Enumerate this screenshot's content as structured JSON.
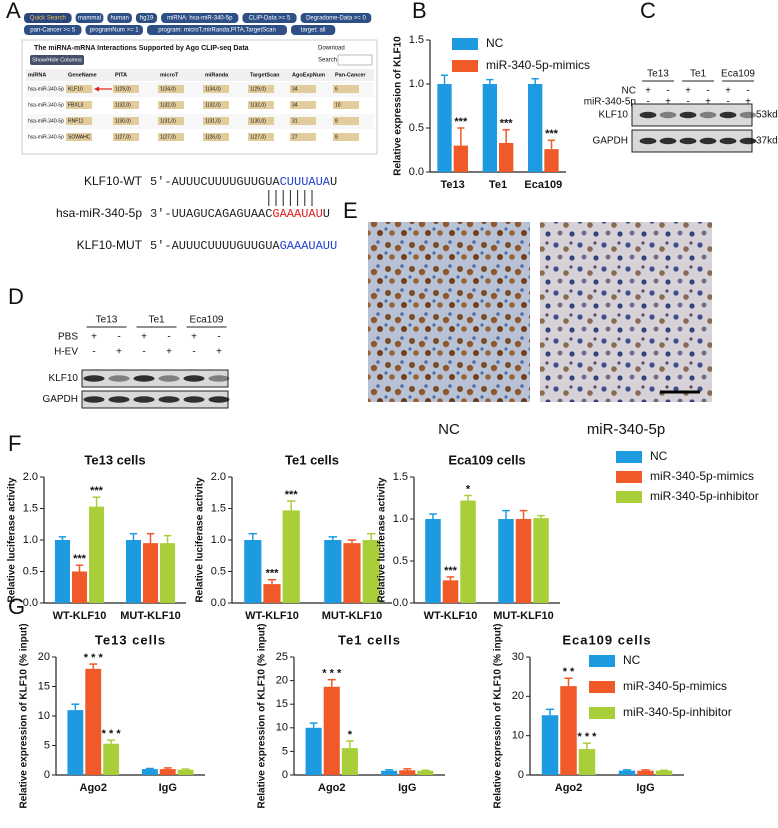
{
  "panel_letters": [
    "A",
    "B",
    "C",
    "D",
    "E",
    "F",
    "G"
  ],
  "panel_a": {
    "buttons": [
      "Quick Search",
      "mammal",
      "human",
      "hg19",
      "miRNA: hsa-miR-340-5p",
      "CLIP-Data >= 5",
      "Degradome-Data >= 0",
      "pan-Cancer >= 5",
      "programNum >= 1",
      "program: microT,mirRanda,PITA,TargetScan",
      "target: all"
    ],
    "table": {
      "title": "The miRNA-mRNA Interactions Supported by Ago CLIP-seq Data",
      "download": "Download",
      "show_hide": "Show/Hide Columns",
      "search": "Search:",
      "columns": [
        "miRNA",
        "GeneName",
        "PITA",
        "microT",
        "miRanda",
        "TargetScan",
        "AgoExpNum",
        "Pan-Cancer"
      ],
      "rows": [
        [
          "hsa-miR-340-5p",
          "KLF10",
          "1(29,0)",
          "1(34,0)",
          "1(34,0)",
          "1(29,0)",
          "34",
          "6"
        ],
        [
          "hsa-miR-340-5p",
          "FBXL3",
          "1(32,0)",
          "1(32,0)",
          "1(32,0)",
          "1(32,0)",
          "34",
          "10"
        ],
        [
          "hsa-miR-340-5p",
          "RNF11",
          "1(30,0)",
          "1(31,0)",
          "1(31,0)",
          "1(30,0)",
          "31",
          "8"
        ],
        [
          "hsa-miR-340-5p",
          "SOWAHC",
          "1(27,0)",
          "1(27,0)",
          "1(26,0)",
          "1(27,0)",
          "27",
          "8"
        ]
      ]
    },
    "sequences": [
      {
        "label": "KLF10-WT",
        "parts": [
          {
            "text": "5'-AUUUCUUUUGUUGUA",
            "color": "#222222"
          },
          {
            "text": "CUUUAUA",
            "color": "#1f3fd1"
          },
          {
            "text": "U",
            "color": "#222222"
          }
        ]
      },
      {
        "label": "hsa-miR-340-5p",
        "parts": [
          {
            "text": "3'-UUAGUCAGAGUAAC",
            "color": "#222222"
          },
          {
            "text": "GAAAUAU",
            "color": "#e0201b"
          },
          {
            "text": "U",
            "color": "#222222"
          }
        ]
      },
      {
        "label": "KLF10-MUT",
        "parts": [
          {
            "text": "5'-AUUUCUUUUGUUGUA",
            "color": "#222222"
          },
          {
            "text": "GAAAUAUU",
            "color": "#1f3fd1"
          }
        ]
      }
    ]
  },
  "panel_c": {
    "cell_lines": [
      "Te13",
      "Te1",
      "Eca109"
    ],
    "rows": [
      {
        "label": "NC",
        "signs": [
          "+",
          "-",
          "+",
          "-",
          "+",
          "-"
        ]
      },
      {
        "label": "miR-340-5p",
        "signs": [
          "-",
          "+",
          "-",
          "+",
          "-",
          "+"
        ]
      }
    ],
    "bands": [
      {
        "label": "KLF10",
        "size": "53kd"
      },
      {
        "label": "GAPDH",
        "size": "37kd"
      }
    ]
  },
  "panel_d": {
    "cell_lines": [
      "Te13",
      "Te1",
      "Eca109"
    ],
    "rows": [
      {
        "label": "PBS",
        "signs": [
          "+",
          "-",
          "+",
          "-",
          "+",
          "-"
        ]
      },
      {
        "label": "H-EV",
        "signs": [
          "-",
          "+",
          "-",
          "+",
          "-",
          "+"
        ]
      }
    ],
    "bands": [
      {
        "label": "KLF10"
      },
      {
        "label": "GAPDH"
      }
    ]
  },
  "panel_e": {
    "labels": [
      "NC",
      "miR-340-5p"
    ]
  },
  "chart_data": [
    {
      "type": "bar",
      "categories": [
        "Te13",
        "Te1",
        "Eca109"
      ],
      "y_label": "Relative expression of KLF10",
      "ylim": [
        0,
        1.5
      ],
      "yticks": [
        {
          "value": 0,
          "label": "0.0"
        },
        {
          "value": 0.5,
          "label": "0.5"
        },
        {
          "value": 1,
          "label": "1.0"
        },
        {
          "value": 1.5,
          "label": "1.5"
        }
      ],
      "legend": "top",
      "series": [
        {
          "name": "NC",
          "color": "#1e9be0",
          "values": [
            1.0,
            1.0,
            1.0
          ],
          "errors": [
            0.1,
            0.05,
            0.06
          ]
        },
        {
          "name": "miR-340-5p-mimics",
          "color": "#f05a28",
          "values": [
            0.3,
            0.33,
            0.26
          ],
          "errors": [
            0.2,
            0.15,
            0.1
          ],
          "annotations": [
            "***",
            "***",
            "***"
          ]
        }
      ]
    },
    {
      "type": "bar",
      "title": "Te13 cells",
      "categories": [
        "WT-KLF10",
        "MUT-KLF10"
      ],
      "y_label": "Relative luciferase activity",
      "ylim": [
        0,
        2
      ],
      "yticks": [
        {
          "value": 0,
          "label": "0.0"
        },
        {
          "value": 0.5,
          "label": "0.5"
        },
        {
          "value": 1,
          "label": "1.0"
        },
        {
          "value": 1.5,
          "label": "1.5"
        },
        {
          "value": 2,
          "label": "2.0"
        }
      ],
      "series": [
        {
          "color": "#1e9be0",
          "values": [
            1.0,
            1.0
          ],
          "errors": [
            0.05,
            0.1
          ]
        },
        {
          "color": "#f05a28",
          "values": [
            0.5,
            0.95
          ],
          "errors": [
            0.1,
            0.15
          ],
          "annotations": [
            "***",
            null
          ]
        },
        {
          "color": "#a8cf3a",
          "values": [
            1.53,
            0.95
          ],
          "errors": [
            0.15,
            0.12
          ],
          "annotations": [
            "***",
            null
          ]
        }
      ]
    },
    {
      "type": "bar",
      "title": "Te1 cells",
      "categories": [
        "WT-KLF10",
        "MUT-KLF10"
      ],
      "y_label": "Relative luciferase activity",
      "ylim": [
        0,
        2
      ],
      "yticks": [
        {
          "value": 0,
          "label": "0.0"
        },
        {
          "value": 0.5,
          "label": "0.5"
        },
        {
          "value": 1,
          "label": "1.0"
        },
        {
          "value": 1.5,
          "label": "1.5"
        },
        {
          "value": 2,
          "label": "2.0"
        }
      ],
      "series": [
        {
          "color": "#1e9be0",
          "values": [
            1.0,
            1.0
          ],
          "errors": [
            0.1,
            0.05
          ]
        },
        {
          "color": "#f05a28",
          "values": [
            0.3,
            0.95
          ],
          "errors": [
            0.07,
            0.05
          ],
          "annotations": [
            "***",
            null
          ]
        },
        {
          "color": "#a8cf3a",
          "values": [
            1.47,
            1.0
          ],
          "errors": [
            0.15,
            0.1
          ],
          "annotations": [
            "***",
            null
          ]
        }
      ]
    },
    {
      "type": "bar",
      "title": "Eca109 cells",
      "categories": [
        "WT-KLF10",
        "MUT-KLF10"
      ],
      "y_label": "Relative luciferase activity",
      "ylim": [
        0,
        1.5
      ],
      "yticks": [
        {
          "value": 0,
          "label": "0.0"
        },
        {
          "value": 0.5,
          "label": "0.5"
        },
        {
          "value": 1,
          "label": "1.0"
        },
        {
          "value": 1.5,
          "label": "1.5"
        }
      ],
      "legend": "right",
      "series": [
        {
          "name": "NC",
          "color": "#1e9be0",
          "values": [
            1.0,
            1.0
          ],
          "errors": [
            0.06,
            0.1
          ]
        },
        {
          "name": "miR-340-5p-mimics",
          "color": "#f05a28",
          "values": [
            0.27,
            1.0
          ],
          "errors": [
            0.04,
            0.1
          ],
          "annotations": [
            "***",
            null
          ]
        },
        {
          "name": "miR-340-5p-inhibitor",
          "color": "#a8cf3a",
          "values": [
            1.22,
            1.01
          ],
          "errors": [
            0.06,
            0.03
          ],
          "annotations": [
            "*",
            null
          ]
        }
      ]
    },
    {
      "type": "bar",
      "title": "Te13 cells",
      "categories": [
        "Ago2",
        "IgG"
      ],
      "y_label": "Relative expression of KLF10 (% input)",
      "ylim": [
        0,
        20
      ],
      "yticks": [
        0,
        5,
        10,
        15,
        20
      ],
      "series": [
        {
          "color": "#1e9be0",
          "values": [
            11,
            1
          ],
          "errors": [
            1,
            0.1
          ]
        },
        {
          "color": "#f05a28",
          "values": [
            18,
            1
          ],
          "errors": [
            0.8,
            0.2
          ],
          "annotations": [
            "* * *",
            null
          ]
        },
        {
          "color": "#a8cf3a",
          "values": [
            5.3,
            0.9
          ],
          "errors": [
            0.6,
            0.1
          ],
          "annotations": [
            "* * *",
            null
          ]
        }
      ]
    },
    {
      "type": "bar",
      "title": "Te1 cells",
      "categories": [
        "Ago2",
        "IgG"
      ],
      "y_label": "Relative expression of KLF10 (% input)",
      "ylim": [
        0,
        25
      ],
      "yticks": [
        0,
        5,
        10,
        15,
        20,
        25
      ],
      "series": [
        {
          "color": "#1e9be0",
          "values": [
            10,
            0.9
          ],
          "errors": [
            1,
            0.2
          ]
        },
        {
          "color": "#f05a28",
          "values": [
            18.7,
            1
          ],
          "errors": [
            1.5,
            0.3
          ],
          "annotations": [
            "* * *",
            null
          ]
        },
        {
          "color": "#a8cf3a",
          "values": [
            5.7,
            0.9
          ],
          "errors": [
            1.5,
            0.1
          ],
          "annotations": [
            "*",
            null
          ]
        }
      ]
    },
    {
      "type": "bar",
      "title": "Eca109 cells",
      "categories": [
        "Ago2",
        "IgG"
      ],
      "y_label": "Relative expression of KLF10 (% input)",
      "ylim": [
        0,
        30
      ],
      "yticks": [
        0,
        10,
        20,
        30
      ],
      "legend": "upper right",
      "series": [
        {
          "name": "NC",
          "color": "#1e9be0",
          "values": [
            15.2,
            1.1
          ],
          "errors": [
            1.5,
            0.2
          ]
        },
        {
          "name": "miR-340-5p-mimics",
          "color": "#f05a28",
          "values": [
            22.6,
            1.1
          ],
          "errors": [
            2,
            0.2
          ],
          "annotations": [
            "* *",
            null
          ]
        },
        {
          "name": "miR-340-5p-inhibitor",
          "color": "#a8cf3a",
          "values": [
            6.6,
            1.1
          ],
          "errors": [
            1.5,
            0.1
          ],
          "annotations": [
            "* * *",
            null
          ]
        }
      ]
    }
  ]
}
